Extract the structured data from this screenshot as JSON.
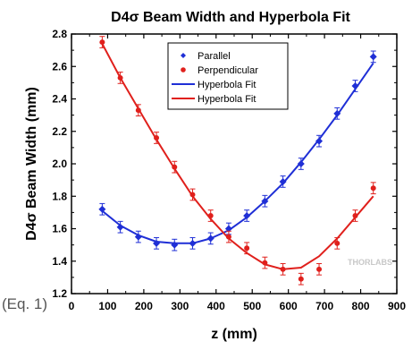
{
  "chart_data": {
    "type": "scatter",
    "title": "D4σ Beam Width and Hyperbola Fit",
    "xlabel": "z (mm)",
    "ylabel": "D4σ Beam Width (mm)",
    "xlim": [
      0,
      900
    ],
    "ylim": [
      1.2,
      2.8
    ],
    "x_ticks": [
      "0",
      "100",
      "200",
      "300",
      "400",
      "500",
      "600",
      "700",
      "800",
      "900"
    ],
    "y_ticks": [
      "1.2",
      "1.4",
      "1.6",
      "1.8",
      "2.0",
      "2.2",
      "2.4",
      "2.6",
      "2.8"
    ],
    "grid": false,
    "legend_position": "top-center",
    "series": [
      {
        "name": "Parallel",
        "kind": "points",
        "marker": "diamond",
        "color": "#1f2fd6",
        "x": [
          85,
          135,
          185,
          235,
          285,
          335,
          385,
          435,
          485,
          535,
          585,
          635,
          685,
          735,
          785,
          835
        ],
        "y": [
          1.72,
          1.61,
          1.55,
          1.51,
          1.5,
          1.51,
          1.54,
          1.6,
          1.68,
          1.77,
          1.89,
          2.0,
          2.14,
          2.31,
          2.48,
          2.66
        ],
        "error": 0.035
      },
      {
        "name": "Perpendicular",
        "kind": "points",
        "marker": "circle",
        "color": "#e0201c",
        "x": [
          85,
          135,
          185,
          235,
          285,
          335,
          385,
          435,
          485,
          535,
          585,
          635,
          685,
          735,
          785,
          835
        ],
        "y": [
          2.75,
          2.53,
          2.33,
          2.16,
          1.98,
          1.81,
          1.68,
          1.55,
          1.48,
          1.39,
          1.35,
          1.29,
          1.35,
          1.51,
          1.68,
          1.85
        ],
        "error": 0.035
      },
      {
        "name": "Hyperbola Fit",
        "kind": "line",
        "color": "#1f2fd6",
        "x": [
          85,
          135,
          185,
          235,
          285,
          335,
          385,
          435,
          485,
          535,
          585,
          635,
          685,
          735,
          785,
          835
        ],
        "y": [
          1.71,
          1.62,
          1.56,
          1.52,
          1.51,
          1.51,
          1.54,
          1.59,
          1.67,
          1.77,
          1.88,
          2.01,
          2.15,
          2.3,
          2.46,
          2.62
        ]
      },
      {
        "name": "Hyperbola Fit",
        "kind": "line",
        "color": "#e0201c",
        "x": [
          85,
          135,
          185,
          235,
          285,
          335,
          385,
          435,
          485,
          535,
          585,
          635,
          685,
          735,
          785,
          835
        ],
        "y": [
          2.74,
          2.53,
          2.34,
          2.15,
          1.97,
          1.8,
          1.66,
          1.54,
          1.45,
          1.38,
          1.35,
          1.36,
          1.43,
          1.54,
          1.67,
          1.8
        ]
      }
    ],
    "watermark": "THORLABS"
  },
  "caption": "(Eq. 1)"
}
